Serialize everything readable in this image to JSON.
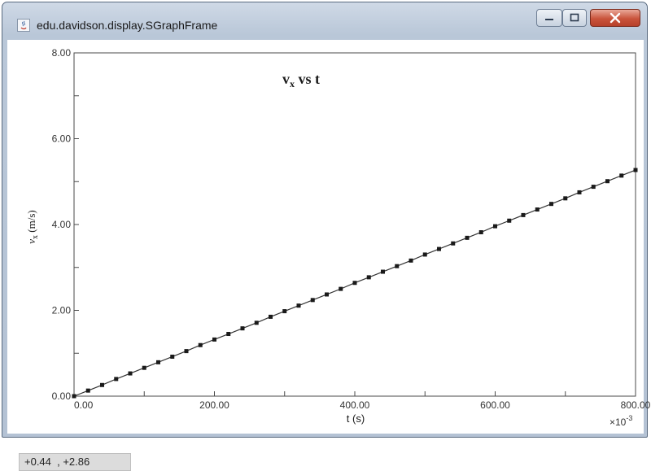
{
  "window": {
    "title": "edu.davidson.display.SGraphFrame",
    "controls": {
      "minimize": "minimize-icon",
      "maximize": "maximize-icon",
      "close": "close-icon"
    }
  },
  "status": {
    "coords": "+0.44  , +2.86"
  },
  "chart_data": {
    "type": "scatter",
    "title_main": "v",
    "title_sub": "x",
    "title_rest": " vs t",
    "xlabel": "t (s)",
    "ylabel_main": "v",
    "ylabel_sub": "x",
    "ylabel_rest": " (m/s)",
    "x_multiplier": "×10",
    "x_multiplier_exp": "-3",
    "xlim": [
      0,
      800
    ],
    "ylim": [
      0,
      8
    ],
    "x_ticks": [
      "0.00",
      "200.00",
      "400.00",
      "600.00",
      "800.00"
    ],
    "y_ticks": [
      "0.00",
      "2.00",
      "4.00",
      "6.00",
      "8.00"
    ],
    "grid": false,
    "marker_color": "#1a1a1a",
    "line_color": "#333333",
    "series": [
      {
        "x": [
          0,
          20,
          40,
          60,
          80,
          100,
          120,
          140,
          160,
          180,
          200,
          220,
          240,
          260,
          280,
          300,
          320,
          340,
          360,
          380,
          400,
          420,
          440,
          460,
          480,
          500,
          520,
          540,
          560,
          580,
          600,
          620,
          640,
          660,
          680,
          700,
          720,
          740,
          760,
          780,
          800
        ],
        "y": [
          0.0,
          0.13,
          0.26,
          0.4,
          0.53,
          0.66,
          0.79,
          0.92,
          1.05,
          1.19,
          1.32,
          1.45,
          1.58,
          1.71,
          1.85,
          1.98,
          2.11,
          2.24,
          2.37,
          2.5,
          2.64,
          2.77,
          2.9,
          3.03,
          3.16,
          3.3,
          3.43,
          3.56,
          3.69,
          3.82,
          3.96,
          4.09,
          4.22,
          4.35,
          4.48,
          4.61,
          4.75,
          4.88,
          5.01,
          5.14,
          5.27
        ]
      }
    ]
  }
}
